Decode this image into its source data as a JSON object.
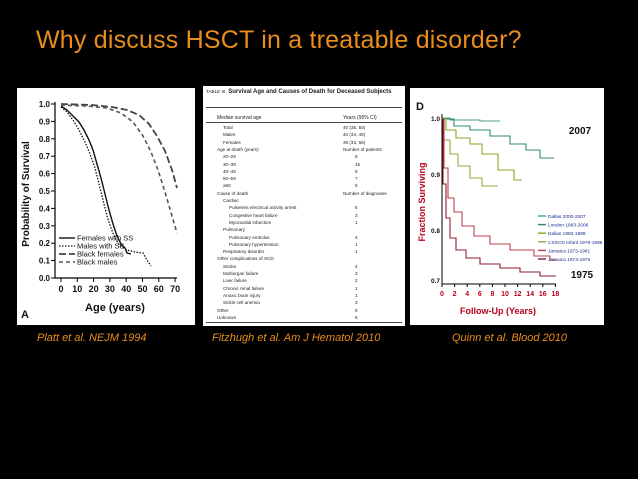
{
  "slide": {
    "title": "Why discuss  HSCT in a treatable disorder?",
    "captions": [
      "Platt et al. NEJM 1994",
      "Fitzhugh et al. Am J Hematol 2010",
      "Quinn et al. Blood 2010"
    ],
    "title_color": "#e98d1c",
    "background": "#000000"
  },
  "panel_a": {
    "letter": "A",
    "ylabel": "Probability of Survival",
    "xlabel": "Age (years)",
    "yticks": [
      "1.0",
      "0.9",
      "0.8",
      "0.7",
      "0.6",
      "0.5",
      "0.4",
      "0.3",
      "0.2",
      "0.1",
      "0.0"
    ],
    "xticks": [
      "0",
      "10",
      "20",
      "30",
      "40",
      "50",
      "60",
      "70"
    ],
    "legend": [
      "Females with SS",
      "Males with SS",
      "Black females",
      "Black males"
    ]
  },
  "panel_b": {
    "table_title": "Survival Age and Causes of Death for Deceased Subjects",
    "table_label": "TABLE III.",
    "col1_header": "Median survival age",
    "col2_header": "Years (95% CI)",
    "rows": [
      {
        "label": "Total",
        "value": "40 (35, 50)",
        "indent": 1
      },
      {
        "label": "Males",
        "value": "40 (34, 49)",
        "indent": 1
      },
      {
        "label": "Females",
        "value": "39 (33, 56)",
        "indent": 1
      },
      {
        "label": "Age at death (years)",
        "value": "Number of patients",
        "indent": 0
      },
      {
        "label": "20–29",
        "value": "8",
        "indent": 1
      },
      {
        "label": "30–39",
        "value": "15",
        "indent": 1
      },
      {
        "label": "40–49",
        "value": "8",
        "indent": 1
      },
      {
        "label": "50–59",
        "value": "7",
        "indent": 1
      },
      {
        "label": "≥60",
        "value": "5",
        "indent": 1
      },
      {
        "label": "Cause of death",
        "value": "Number of diagnoses",
        "indent": 0
      },
      {
        "label": "Cardiac",
        "value": "",
        "indent": 1
      },
      {
        "label": "Pulseless electrical activity arrest",
        "value": "5",
        "indent": 2
      },
      {
        "label": "Congestive heart failure",
        "value": "3",
        "indent": 2
      },
      {
        "label": "Myocardial infarction",
        "value": "1",
        "indent": 2
      },
      {
        "label": "Pulmonary",
        "value": "",
        "indent": 1
      },
      {
        "label": "Pulmonary embolus",
        "value": "4",
        "indent": 2
      },
      {
        "label": "Pulmonary hypertension",
        "value": "1",
        "indent": 2
      },
      {
        "label": "Respiratory disorder",
        "value": "1",
        "indent": 1
      },
      {
        "label": "Other complications of SCD",
        "value": "",
        "indent": 0
      },
      {
        "label": "Stroke",
        "value": "4",
        "indent": 1
      },
      {
        "label": "Multiorgan failure",
        "value": "3",
        "indent": 1
      },
      {
        "label": "Liver failure",
        "value": "2",
        "indent": 1
      },
      {
        "label": "Chronic renal failure",
        "value": "1",
        "indent": 1
      },
      {
        "label": "Anoxic brain injury",
        "value": "1",
        "indent": 1
      },
      {
        "label": "Sickle cell anemia",
        "value": "3",
        "indent": 1
      },
      {
        "label": "Other",
        "value": "6",
        "indent": 0
      },
      {
        "label": "Unknown",
        "value": "6",
        "indent": 0
      }
    ]
  },
  "panel_c": {
    "letter": "D",
    "ylabel": "Fraction Surviving",
    "xlabel": "Follow-Up (Years)",
    "yticks": [
      "1.0",
      "0.9",
      "0.8",
      "0.7"
    ],
    "xticks": [
      "0",
      "2",
      "4",
      "6",
      "8",
      "10",
      "12",
      "14",
      "16",
      "18"
    ],
    "label_top": "2007",
    "label_bottom": "1975",
    "legend": [
      "Dallas 2000-2007",
      "London 1993-2006",
      "Dallas 1983-1999",
      "CSSCD Infant 1978-1988",
      "Jamaica 1973-1981",
      "Jamaica 1973-1975"
    ],
    "legend_colors": [
      "#4a9e8c",
      "#2e8c6a",
      "#8aa624",
      "#9aa43c",
      "#b8434f",
      "#8c1d2c"
    ]
  }
}
